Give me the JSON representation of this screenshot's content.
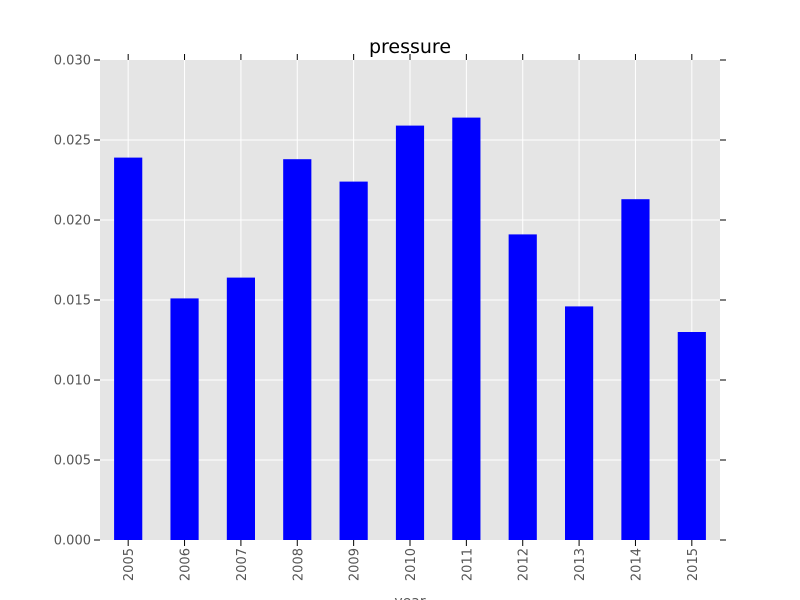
{
  "chart_data": {
    "type": "bar",
    "title": "pressure",
    "xlabel": "year",
    "ylabel": "",
    "categories": [
      "2005",
      "2006",
      "2007",
      "2008",
      "2009",
      "2010",
      "2011",
      "2012",
      "2013",
      "2014",
      "2015"
    ],
    "values": [
      0.0239,
      0.0151,
      0.0164,
      0.0238,
      0.0224,
      0.0259,
      0.0264,
      0.0191,
      0.0146,
      0.0213,
      0.013
    ],
    "ylim": [
      0,
      0.03
    ],
    "yticks": [
      "0.000",
      "0.005",
      "0.010",
      "0.015",
      "0.020",
      "0.025",
      "0.030"
    ],
    "ytick_values": [
      0,
      0.005,
      0.01,
      0.015,
      0.02,
      0.025,
      0.03
    ],
    "grid": true,
    "colors": {
      "bar": "#0000ff",
      "plot_background": "#e5e5e5",
      "grid": "#ffffff",
      "tick_text": "#555555"
    }
  }
}
